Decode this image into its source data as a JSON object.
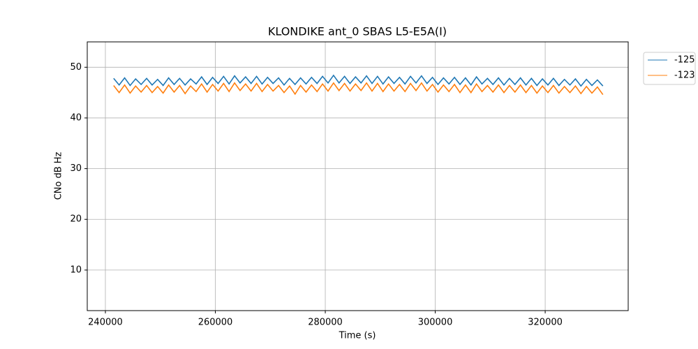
{
  "chart_data": {
    "type": "line",
    "title": "KLONDIKE ant_0 SBAS L5-E5A(I)",
    "xlabel": "Time (s)",
    "ylabel": "CNo dB Hz",
    "x": [
      241500,
      242500,
      243500,
      244500,
      245500,
      246500,
      247500,
      248500,
      249500,
      250500,
      251500,
      252500,
      253500,
      254500,
      255500,
      256500,
      257500,
      258500,
      259500,
      260500,
      261500,
      262500,
      263500,
      264500,
      265500,
      266500,
      267500,
      268500,
      269500,
      270500,
      271500,
      272500,
      273500,
      274500,
      275500,
      276500,
      277500,
      278500,
      279500,
      280500,
      281500,
      282500,
      283500,
      284500,
      285500,
      286500,
      287500,
      288500,
      289500,
      290500,
      291500,
      292500,
      293500,
      294500,
      295500,
      296500,
      297500,
      298500,
      299500,
      300500,
      301500,
      302500,
      303500,
      304500,
      305500,
      306500,
      307500,
      308500,
      309500,
      310500,
      311500,
      312500,
      313500,
      314500,
      315500,
      316500,
      317500,
      318500,
      319500,
      320500,
      321500,
      322500,
      323500,
      324500,
      325500,
      326500,
      327500,
      328500,
      329500,
      330500
    ],
    "series": [
      {
        "name": "-125",
        "color": "#1f77b4",
        "values": [
          47.8,
          46.5,
          47.9,
          46.4,
          47.7,
          46.6,
          47.8,
          46.5,
          47.6,
          46.4,
          47.9,
          46.6,
          47.8,
          46.5,
          47.7,
          46.7,
          48.1,
          46.6,
          48.0,
          46.8,
          48.2,
          46.7,
          48.3,
          46.9,
          48.1,
          46.8,
          48.2,
          46.7,
          48.0,
          46.8,
          47.9,
          46.5,
          47.8,
          46.6,
          47.9,
          46.7,
          48.0,
          46.8,
          48.2,
          46.9,
          48.4,
          46.9,
          48.2,
          46.8,
          48.1,
          46.9,
          48.3,
          46.8,
          48.2,
          46.7,
          48.1,
          46.8,
          48.0,
          46.7,
          48.2,
          46.9,
          48.3,
          46.8,
          48.0,
          46.6,
          47.9,
          46.7,
          48.0,
          46.6,
          47.9,
          46.5,
          48.1,
          46.7,
          47.8,
          46.6,
          47.9,
          46.5,
          47.8,
          46.6,
          47.9,
          46.5,
          47.8,
          46.4,
          47.7,
          46.5,
          47.8,
          46.4,
          47.6,
          46.5,
          47.7,
          46.3,
          47.6,
          46.4,
          47.5,
          46.3
        ]
      },
      {
        "name": "-123",
        "color": "#ff7f0e",
        "values": [
          46.4,
          45.0,
          46.5,
          44.9,
          46.3,
          45.1,
          46.4,
          45.0,
          46.2,
          44.9,
          46.5,
          45.1,
          46.4,
          44.8,
          46.3,
          45.2,
          46.7,
          45.1,
          46.6,
          45.3,
          46.8,
          45.2,
          46.9,
          45.4,
          46.7,
          45.3,
          46.8,
          45.2,
          46.6,
          45.3,
          46.4,
          45.0,
          46.3,
          44.7,
          46.4,
          45.1,
          46.5,
          45.2,
          46.7,
          45.3,
          46.9,
          45.4,
          46.8,
          45.3,
          46.7,
          45.4,
          46.9,
          45.3,
          46.8,
          45.2,
          46.7,
          45.3,
          46.6,
          45.2,
          46.8,
          45.4,
          46.9,
          45.3,
          46.6,
          45.1,
          46.5,
          45.2,
          46.6,
          45.0,
          46.5,
          45.0,
          46.7,
          45.2,
          46.4,
          45.1,
          46.5,
          45.0,
          46.4,
          45.1,
          46.5,
          45.0,
          46.4,
          44.9,
          46.3,
          45.0,
          46.4,
          44.9,
          46.2,
          45.0,
          46.3,
          44.8,
          46.2,
          44.9,
          46.1,
          44.6
        ]
      }
    ],
    "xlim": [
      236700,
      335100
    ],
    "ylim": [
      2,
      55
    ],
    "xticks": [
      240000,
      260000,
      280000,
      300000,
      320000
    ],
    "yticks": [
      10,
      20,
      30,
      40,
      50
    ],
    "grid": true,
    "legend": "outside-upper-right"
  }
}
